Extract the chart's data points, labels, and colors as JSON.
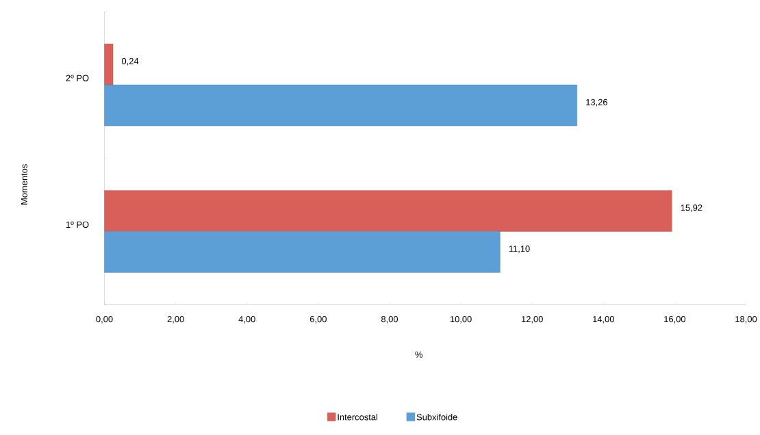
{
  "chart_data": {
    "type": "bar",
    "orientation": "horizontal",
    "xlabel": "%",
    "ylabel": "Momentos",
    "categories": [
      "2º PO",
      "1º PO"
    ],
    "series": [
      {
        "name": "Intercostal",
        "color": "#d9605a",
        "values": [
          0.24,
          15.92
        ],
        "value_labels": [
          "0,24",
          "15,92"
        ]
      },
      {
        "name": "Subxifoide",
        "color": "#5b9fd6",
        "values": [
          13.26,
          11.1
        ],
        "value_labels": [
          "13,26",
          "11,10"
        ]
      }
    ],
    "xlim": [
      0,
      18
    ],
    "xticks": [
      {
        "value": 0,
        "label": "0,00"
      },
      {
        "value": 2,
        "label": "2,00"
      },
      {
        "value": 4,
        "label": "4,00"
      },
      {
        "value": 6,
        "label": "6,00"
      },
      {
        "value": 8,
        "label": "8,00"
      },
      {
        "value": 10,
        "label": "10,00"
      },
      {
        "value": 12,
        "label": "12,00"
      },
      {
        "value": 14,
        "label": "14,00"
      },
      {
        "value": 16,
        "label": "16,00"
      },
      {
        "value": 18,
        "label": "18,00"
      }
    ],
    "legend": "bottom",
    "grid": false
  }
}
